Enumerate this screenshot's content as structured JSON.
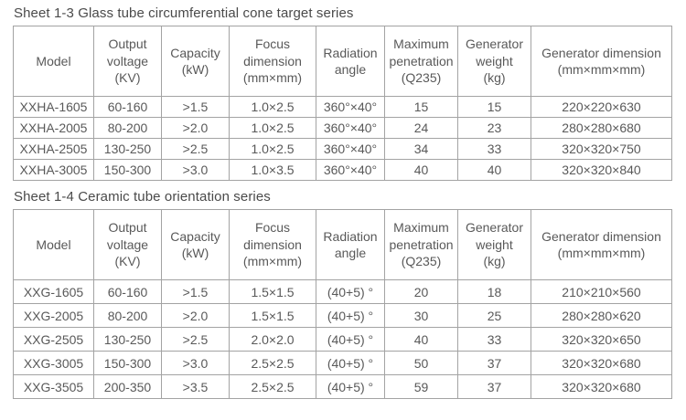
{
  "tables": [
    {
      "title": "Sheet 1-3 Glass tube circumferential cone target series",
      "headers": [
        {
          "lines": [
            "Model"
          ]
        },
        {
          "lines": [
            "Output",
            "voltage",
            "(KV)"
          ]
        },
        {
          "lines": [
            "Capacity",
            "(kW)"
          ]
        },
        {
          "lines": [
            "Focus",
            "dimension",
            "(mm×mm)"
          ]
        },
        {
          "lines": [
            "Radiation",
            "angle"
          ]
        },
        {
          "lines": [
            "Maximum",
            "penetration",
            "(Q235)"
          ]
        },
        {
          "lines": [
            "Generator",
            "weight",
            "(kg)"
          ]
        },
        {
          "lines": [
            "Generator dimension",
            "(mm×mm×mm)"
          ]
        }
      ],
      "rows": [
        [
          "XXHA-1605",
          "60-160",
          ">1.5",
          "1.0×2.5",
          "360°×40°",
          "15",
          "15",
          "220×220×630"
        ],
        [
          "XXHA-2005",
          "80-200",
          ">2.0",
          "1.0×2.5",
          "360°×40°",
          "24",
          "23",
          "280×280×680"
        ],
        [
          "XXHA-2505",
          "130-250",
          ">2.5",
          "1.0×2.5",
          "360°×40°",
          "34",
          "33",
          "320×320×750"
        ],
        [
          "XXHA-3005",
          "150-300",
          ">3.0",
          "1.0×3.5",
          "360°×40°",
          "40",
          "40",
          "320×320×840"
        ]
      ]
    },
    {
      "title": "Sheet 1-4 Ceramic tube orientation series",
      "headers": [
        {
          "lines": [
            "Model"
          ]
        },
        {
          "lines": [
            "Output",
            "voltage",
            "(KV)"
          ]
        },
        {
          "lines": [
            "Capacity",
            "(kW)"
          ]
        },
        {
          "lines": [
            "Focus",
            "dimension",
            "(mm×mm)"
          ]
        },
        {
          "lines": [
            "Radiation",
            "angle"
          ]
        },
        {
          "lines": [
            "Maximum",
            "penetration",
            "(Q235)"
          ]
        },
        {
          "lines": [
            "Generator",
            "weight",
            "(kg)"
          ]
        },
        {
          "lines": [
            "Generator dimension",
            "(mm×mm×mm)"
          ]
        }
      ],
      "rows": [
        [
          "XXG-1605",
          "60-160",
          ">1.5",
          "1.5×1.5",
          "(40+5) °",
          "20",
          "18",
          "210×210×560"
        ],
        [
          "XXG-2005",
          "80-200",
          ">2.0",
          "1.5×1.5",
          "(40+5) °",
          "30",
          "25",
          "280×280×620"
        ],
        [
          "XXG-2505",
          "130-250",
          ">2.5",
          "2.0×2.0",
          "(40+5) °",
          "40",
          "33",
          "320×320×650"
        ],
        [
          "XXG-3005",
          "150-300",
          ">3.0",
          "2.5×2.5",
          "(40+5) °",
          "50",
          "37",
          "320×320×680"
        ],
        [
          "XXG-3505",
          "200-350",
          ">3.5",
          "2.5×2.5",
          "(40+5) °",
          "59",
          "37",
          "320×320×680"
        ]
      ]
    }
  ],
  "colors": {
    "text": "#595959",
    "border": "#a3a3a3",
    "background": "#ffffff"
  }
}
